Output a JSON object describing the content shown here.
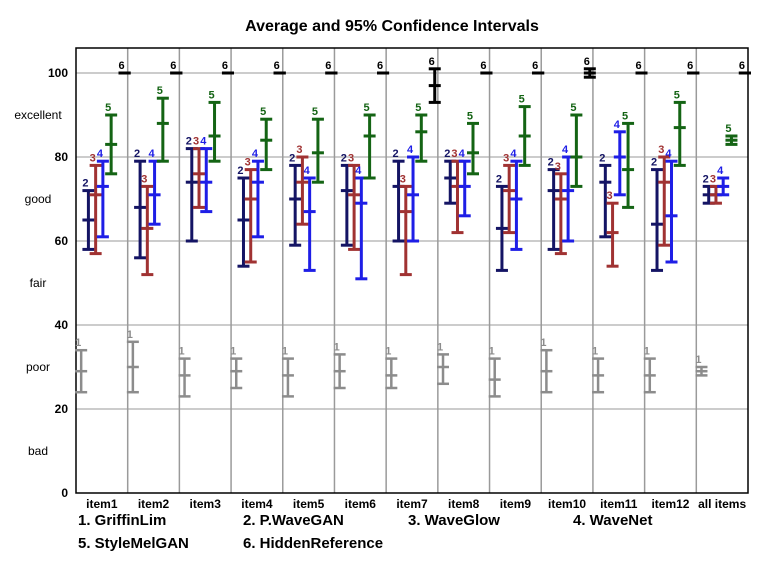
{
  "chart_data": {
    "type": "errorbar",
    "title": "Average and 95% Confidence Intervals",
    "ylim": [
      0,
      100
    ],
    "yticks": [
      0,
      20,
      40,
      60,
      80,
      100
    ],
    "ylabels": [
      {
        "label": "excellent",
        "value": 90
      },
      {
        "label": "good",
        "value": 70
      },
      {
        "label": "fair",
        "value": 50
      },
      {
        "label": "poor",
        "value": 30
      },
      {
        "label": "bad",
        "value": 10
      }
    ],
    "grid": true,
    "categories": [
      "item1",
      "item2",
      "item3",
      "item4",
      "item5",
      "item6",
      "item7",
      "item8",
      "item9",
      "item10",
      "item11",
      "item12",
      "all items"
    ],
    "series": [
      {
        "name": "1. GriffinLim",
        "marker": "1",
        "color": "#8c8c8c",
        "mean": [
          29,
          30,
          28,
          29,
          28,
          29,
          28,
          30,
          27,
          29,
          28,
          28,
          29
        ],
        "low": [
          24,
          24,
          23,
          25,
          23,
          25,
          25,
          26,
          23,
          24,
          24,
          24,
          28
        ],
        "high": [
          34,
          36,
          32,
          32,
          32,
          33,
          32,
          33,
          32,
          34,
          32,
          32,
          30
        ]
      },
      {
        "name": "2. P.WaveGAN",
        "marker": "2",
        "color": "#141464",
        "mean": [
          65,
          68,
          74,
          65,
          70,
          72,
          73,
          75,
          63,
          72,
          74,
          64,
          71
        ],
        "low": [
          58,
          56,
          60,
          54,
          59,
          59,
          60,
          69,
          53,
          58,
          61,
          53,
          69
        ],
        "high": [
          72,
          79,
          82,
          75,
          78,
          78,
          79,
          79,
          73,
          77,
          78,
          77,
          73
        ]
      },
      {
        "name": "3. WaveGlow",
        "marker": "3",
        "color": "#a03232",
        "mean": [
          71,
          63,
          76,
          70,
          74,
          71,
          67,
          73,
          72,
          70,
          62,
          74,
          71
        ],
        "low": [
          57,
          52,
          68,
          55,
          64,
          58,
          52,
          62,
          62,
          57,
          54,
          59,
          69
        ],
        "high": [
          78,
          73,
          82,
          77,
          80,
          78,
          73,
          79,
          78,
          76,
          69,
          80,
          73
        ]
      },
      {
        "name": "4. WaveNet",
        "marker": "4",
        "color": "#1e1ee6",
        "mean": [
          73,
          71,
          74,
          74,
          67,
          69,
          71,
          73,
          70,
          72,
          80,
          66,
          73
        ],
        "low": [
          61,
          64,
          67,
          61,
          53,
          51,
          60,
          66,
          58,
          60,
          71,
          55,
          71
        ],
        "high": [
          79,
          79,
          82,
          79,
          75,
          75,
          80,
          79,
          79,
          80,
          86,
          79,
          75
        ]
      },
      {
        "name": "5. StyleMelGAN",
        "marker": "5",
        "color": "#146414",
        "mean": [
          83,
          88,
          85,
          84,
          81,
          85,
          86,
          81,
          85,
          80,
          77,
          87,
          84
        ],
        "low": [
          76,
          79,
          79,
          77,
          74,
          75,
          79,
          76,
          78,
          73,
          68,
          78,
          83
        ],
        "high": [
          90,
          94,
          93,
          89,
          89,
          90,
          90,
          88,
          92,
          90,
          88,
          93,
          85
        ]
      },
      {
        "name": "6. HiddenReference",
        "marker": "6",
        "color": "#000000",
        "mean": [
          100,
          100,
          100,
          100,
          100,
          100,
          97,
          100,
          100,
          100,
          100,
          100,
          100
        ],
        "low": [
          100,
          100,
          100,
          100,
          100,
          100,
          93,
          100,
          100,
          99,
          100,
          100,
          100
        ],
        "high": [
          100,
          100,
          100,
          100,
          100,
          100,
          101,
          100,
          100,
          101,
          100,
          100,
          100
        ]
      }
    ]
  }
}
